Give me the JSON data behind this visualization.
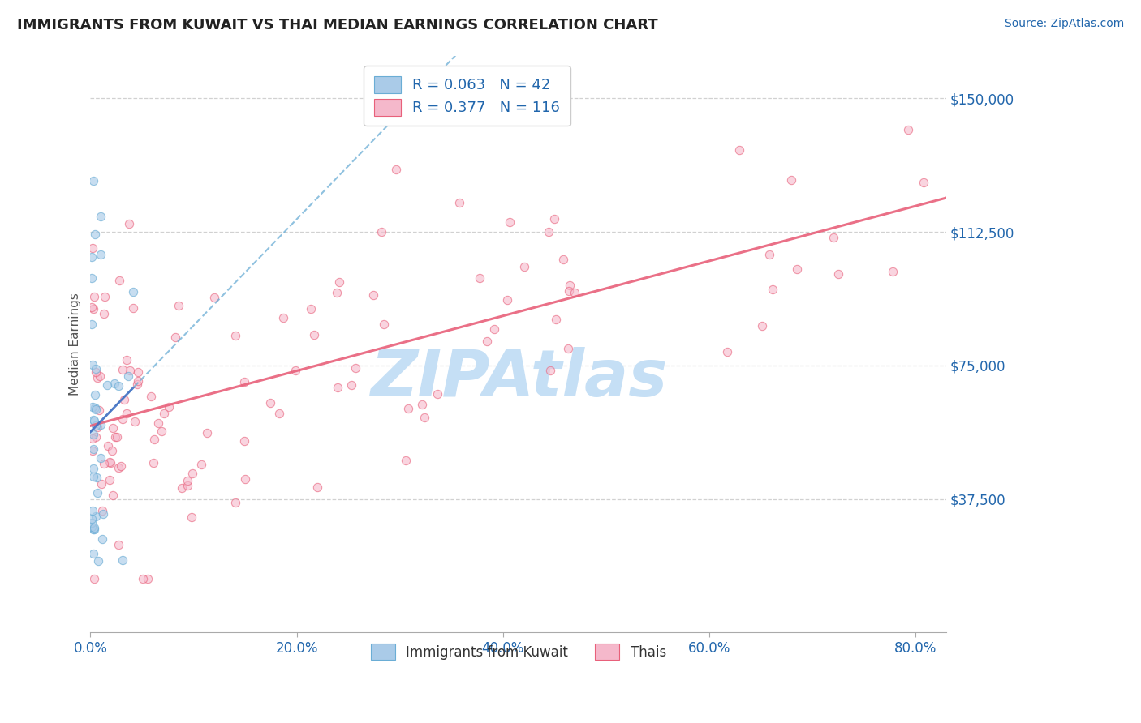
{
  "title": "IMMIGRANTS FROM KUWAIT VS THAI MEDIAN EARNINGS CORRELATION CHART",
  "source": "Source: ZipAtlas.com",
  "xlabel_ticks": [
    "0.0%",
    "20.0%",
    "40.0%",
    "60.0%",
    "80.0%"
  ],
  "xlabel_vals": [
    0.0,
    0.2,
    0.4,
    0.6,
    0.8
  ],
  "ylabel_ticks": [
    "$37,500",
    "$75,000",
    "$112,500",
    "$150,000"
  ],
  "ylabel_vals": [
    37500,
    75000,
    112500,
    150000
  ],
  "ylabel_label": "Median Earnings",
  "xmin": 0.0,
  "xmax": 0.83,
  "ymin": 0,
  "ymax": 162000,
  "legend_label1": "Immigrants from Kuwait",
  "legend_label2": "Thais",
  "R1": 0.063,
  "N1": 42,
  "R2": 0.377,
  "N2": 116,
  "color_blue": "#aacbe8",
  "color_blue_line": "#6aadd5",
  "color_blue_solid": "#4472c4",
  "color_pink": "#f5b8cb",
  "color_pink_line": "#e8607a",
  "color_title": "#222222",
  "color_axis": "#2166ac",
  "watermark_color": "#c5dff5",
  "background_color": "#ffffff",
  "grid_color": "#cccccc",
  "point_size": 55
}
